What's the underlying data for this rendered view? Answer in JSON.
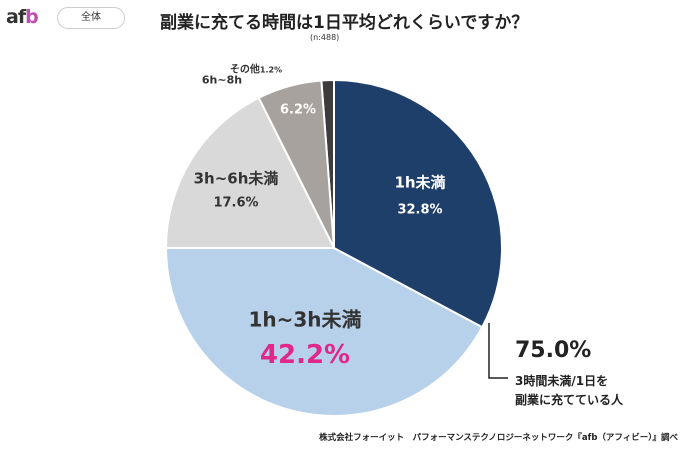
{
  "header": {
    "logo": "afb",
    "filter_pill": "全体"
  },
  "chart_data": {
    "type": "pie",
    "title": "副業に充てる時間は1日平均どれくらいですか？",
    "subtitle": "(n:488)",
    "start": "top",
    "direction": "clockwise",
    "slices": [
      {
        "label": "1h未満",
        "value": 32.8,
        "display": "32.8%",
        "color": "#1f3f6b"
      },
      {
        "label": "1h~3h未満",
        "value": 42.2,
        "display": "42.2%",
        "color": "#b7d1ea",
        "value_color": "#e0288a"
      },
      {
        "label": "3h~6h未満",
        "value": 17.6,
        "display": "17.6%",
        "color": "#d9d9d9"
      },
      {
        "label": "6h~8h",
        "value": 6.2,
        "display": "6.2%",
        "color": "#a8a29e"
      },
      {
        "label": "その他",
        "value": 1.2,
        "display": "1.2%",
        "color": "#3c3c3c"
      }
    ],
    "annotation": {
      "value": "75.0%",
      "line1": "3時間未満/1日を",
      "line2": "副業に充てている人"
    }
  },
  "footer": {
    "credit": "株式会社フォーイット　パフォーマンステクノロジーネットワーク『afb（アフィビー）』調べ"
  }
}
